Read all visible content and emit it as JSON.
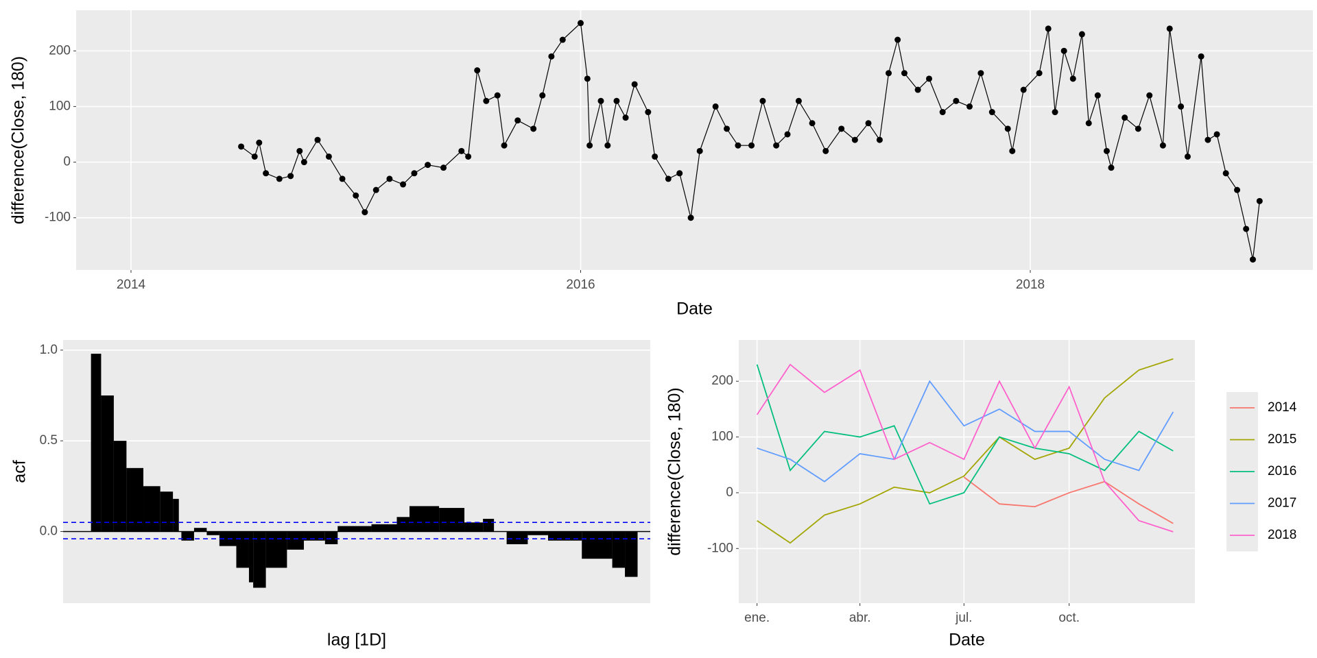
{
  "chart_data": [
    {
      "type": "line",
      "markers": true,
      "x_label": "Date",
      "y_label": "difference(Close, 180)",
      "color": "#000000",
      "grid": true,
      "x": [
        2014.49,
        2014.55,
        2014.57,
        2014.6,
        2014.66,
        2014.71,
        2014.75,
        2014.77,
        2014.83,
        2014.88,
        2014.94,
        2015.0,
        2015.04,
        2015.09,
        2015.15,
        2015.21,
        2015.26,
        2015.32,
        2015.39,
        2015.47,
        2015.5,
        2015.54,
        2015.58,
        2015.63,
        2015.66,
        2015.72,
        2015.79,
        2015.83,
        2015.87,
        2015.92,
        2016.0,
        2016.03,
        2016.04,
        2016.09,
        2016.12,
        2016.16,
        2016.2,
        2016.24,
        2016.3,
        2016.33,
        2016.39,
        2016.44,
        2016.49,
        2016.53,
        2016.6,
        2016.65,
        2016.7,
        2016.76,
        2016.81,
        2016.87,
        2016.92,
        2016.97,
        2017.03,
        2017.09,
        2017.16,
        2017.22,
        2017.28,
        2017.33,
        2017.37,
        2017.41,
        2017.44,
        2017.5,
        2017.55,
        2017.61,
        2017.67,
        2017.73,
        2017.78,
        2017.83,
        2017.9,
        2017.92,
        2017.97,
        2018.04,
        2018.08,
        2018.11,
        2018.15,
        2018.19,
        2018.23,
        2018.26,
        2018.3,
        2018.34,
        2018.36,
        2018.42,
        2018.48,
        2018.53,
        2018.59,
        2018.62,
        2018.67,
        2018.7,
        2018.76,
        2018.79,
        2018.83,
        2018.87,
        2018.92,
        2018.96,
        2018.99,
        2019.02
      ],
      "values": [
        28,
        10,
        35,
        -20,
        -30,
        -25,
        20,
        0,
        40,
        10,
        -30,
        -60,
        -90,
        -50,
        -30,
        -40,
        -20,
        -5,
        -10,
        20,
        10,
        165,
        110,
        120,
        30,
        75,
        60,
        120,
        190,
        220,
        250,
        150,
        30,
        110,
        30,
        110,
        80,
        140,
        90,
        10,
        -30,
        -20,
        -100,
        20,
        100,
        60,
        30,
        30,
        110,
        30,
        50,
        110,
        70,
        20,
        60,
        40,
        70,
        40,
        160,
        220,
        160,
        130,
        150,
        90,
        110,
        100,
        160,
        90,
        60,
        20,
        130,
        160,
        240,
        90,
        200,
        150,
        230,
        70,
        120,
        20,
        -10,
        80,
        60,
        120,
        30,
        240,
        100,
        10,
        190,
        40,
        50,
        -20,
        -50,
        -120,
        -175,
        -70
      ],
      "xlim": [
        2013.756,
        2019.257
      ],
      "xticks": [
        2014,
        2016,
        2018
      ],
      "ylim": [
        -194,
        273
      ],
      "yticks": [
        -100,
        0,
        100,
        200
      ]
    },
    {
      "type": "bar",
      "x_label": "lag [1D]",
      "y_label": "acf",
      "color": "#000000",
      "grid": true,
      "x": [
        0,
        12,
        27,
        42,
        62,
        82,
        97,
        104,
        107,
        122,
        137,
        152,
        172,
        187,
        192,
        207,
        232,
        252,
        277,
        292,
        332,
        362,
        377,
        412,
        442,
        464,
        477,
        492,
        517,
        541,
        581,
        617,
        632
      ],
      "values": [
        0.98,
        0.75,
        0.5,
        0.35,
        0.25,
        0.22,
        0.18,
        0.0,
        -0.05,
        0.02,
        -0.02,
        -0.08,
        -0.2,
        -0.28,
        -0.31,
        -0.2,
        -0.1,
        -0.05,
        -0.07,
        0.03,
        0.04,
        0.08,
        0.14,
        0.13,
        0.05,
        0.07,
        0.0,
        -0.07,
        -0.02,
        -0.05,
        -0.15,
        -0.2,
        -0.25
      ],
      "ci_lines": [
        0.05,
        -0.04
      ],
      "ci_color": "#0000ff",
      "xlim": [
        -33,
        662
      ],
      "ylim": [
        -0.395,
        1.056
      ],
      "yticks": [
        {
          "value": 0,
          "label": "0.0"
        },
        {
          "value": 0.5,
          "label": "0.5"
        },
        {
          "value": 1,
          "label": "1.0"
        }
      ]
    },
    {
      "type": "line",
      "markers": false,
      "x_label": "Date",
      "y_label": "difference(Close, 180)",
      "grid": true,
      "legend": "right",
      "x": [
        1,
        30,
        60,
        91,
        121,
        152,
        182,
        213,
        244,
        274,
        305,
        335,
        365
      ],
      "series": [
        {
          "name": "2014",
          "color": "#F8766D",
          "values": [
            null,
            null,
            null,
            null,
            null,
            null,
            28,
            -20,
            -25,
            0,
            20,
            -20,
            -55
          ]
        },
        {
          "name": "2015",
          "color": "#A3A500",
          "values": [
            -50,
            -90,
            -40,
            -20,
            10,
            0,
            30,
            100,
            60,
            80,
            170,
            220,
            240
          ]
        },
        {
          "name": "2016",
          "color": "#00BF7D",
          "values": [
            230,
            40,
            110,
            100,
            120,
            -20,
            0,
            100,
            80,
            70,
            40,
            110,
            75
          ]
        },
        {
          "name": "2017",
          "color": "#619CFF",
          "values": [
            80,
            60,
            20,
            70,
            60,
            200,
            120,
            150,
            110,
            110,
            60,
            40,
            145
          ]
        },
        {
          "name": "2018",
          "color": "#FF61CC",
          "values": [
            140,
            230,
            180,
            220,
            60,
            90,
            60,
            200,
            80,
            190,
            20,
            -50,
            -70
          ]
        }
      ],
      "xlim": [
        -15,
        384
      ],
      "xticks": [
        {
          "value": 1,
          "label": "ene."
        },
        {
          "value": 91,
          "label": "abr."
        },
        {
          "value": 182,
          "label": "jul."
        },
        {
          "value": 274,
          "label": "oct."
        }
      ],
      "ylim": [
        -198,
        274
      ],
      "yticks": [
        -100,
        0,
        100,
        200
      ]
    }
  ]
}
